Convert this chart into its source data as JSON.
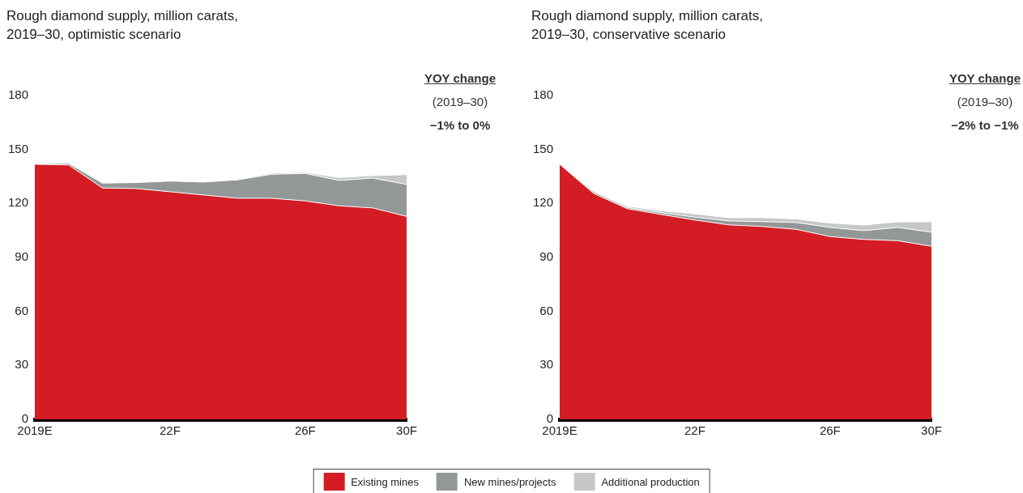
{
  "chart_data": [
    {
      "type": "area",
      "title": "Rough diamond supply, million carats, 2019–30, optimistic scenario",
      "categories": [
        "2019E",
        null,
        null,
        null,
        "22F",
        null,
        null,
        null,
        "26F",
        null,
        null,
        "30F"
      ],
      "stacked": true,
      "ylim": [
        0,
        180
      ],
      "yticks": [
        0,
        30,
        60,
        90,
        120,
        150,
        180
      ],
      "legend": "bottom",
      "annotations": [
        "YOY change",
        "(2019–30)",
        "−1% to 0%"
      ],
      "series": [
        {
          "name": "Existing mines",
          "color": "#d31c23",
          "values": [
            141.8,
            141.4,
            128.6,
            128.3,
            126.5,
            124.7,
            122.9,
            122.9,
            121.4,
            118.7,
            117.5,
            112.8
          ]
        },
        {
          "name": "New mines/projects",
          "color": "#939798",
          "values": [
            0.3,
            0.9,
            2.7,
            3.3,
            5.9,
            7.2,
            10.2,
            13.3,
            15.3,
            14.1,
            16.6,
            17.8
          ]
        },
        {
          "name": "Additional production",
          "color": "#c6c7c7",
          "values": [
            0.1,
            0.2,
            0.3,
            0.3,
            0.3,
            0.3,
            0.3,
            0.7,
            0.6,
            1.6,
            1.4,
            5.4
          ]
        }
      ]
    },
    {
      "type": "area",
      "title": "Rough diamond supply, million carats, 2019–30, conservative scenario",
      "categories": [
        "2019E",
        null,
        null,
        null,
        "22F",
        null,
        null,
        null,
        "26F",
        null,
        null,
        "30F"
      ],
      "stacked": true,
      "ylim": [
        0,
        180
      ],
      "yticks": [
        0,
        30,
        60,
        90,
        120,
        150,
        180
      ],
      "annotations": [
        "YOY change",
        "(2019–30)",
        "−2% to −1%"
      ],
      "series": [
        {
          "color": "#d31c23",
          "values": [
            141.8,
            125.6,
            117.1,
            113.9,
            110.8,
            108.1,
            107.2,
            105.6,
            101.6,
            100.0,
            99.3,
            96.2
          ]
        },
        {
          "color": "#939798",
          "values": [
            0,
            0.9,
            0.7,
            1.0,
            1.6,
            2.2,
            2.7,
            3.8,
            5.1,
            4.9,
            7.4,
            7.8
          ]
        },
        {
          "color": "#c6c7c7",
          "values": [
            0,
            0.3,
            0.7,
            1.1,
            1.8,
            1.8,
            2.2,
            2.0,
            2.4,
            3.1,
            3.1,
            5.8
          ]
        }
      ]
    }
  ]
}
